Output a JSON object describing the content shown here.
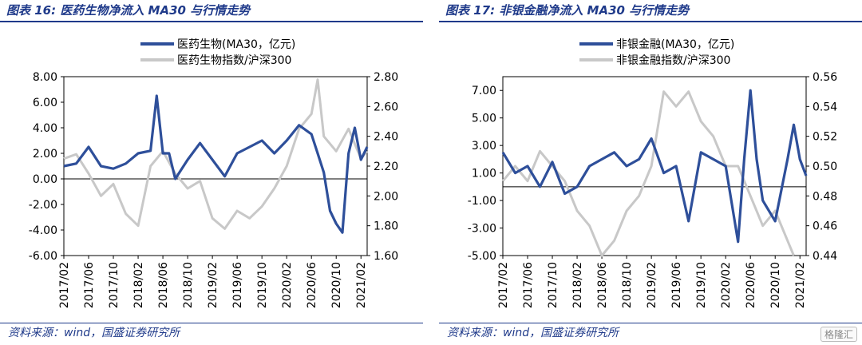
{
  "charts": [
    {
      "title": "图表 16:  医药生物净流入 MA30 与行情走势",
      "source": "资料来源：wind，国盛证券研究所"
    },
    {
      "title": "图表 17:  非银金融净流入 MA30 与行情走势",
      "source": "资料来源：wind，国盛证券研究所"
    }
  ],
  "watermark": "格隆汇",
  "chart_data": [
    {
      "type": "line",
      "title": "",
      "x_ticks": [
        "2017/02",
        "2017/06",
        "2017/10",
        "2018/02",
        "2018/06",
        "2018/10",
        "2019/02",
        "2019/06",
        "2019/10",
        "2020/02",
        "2020/06",
        "2020/10",
        "2021/02"
      ],
      "y_left": {
        "min": -6,
        "max": 8,
        "ticks": [
          "-6.00",
          "-4.00",
          "-2.00",
          "0.00",
          "2.00",
          "4.00",
          "6.00",
          "8.00"
        ]
      },
      "y_right": {
        "min": 1.6,
        "max": 2.8,
        "ticks": [
          "1.60",
          "1.80",
          "2.00",
          "2.20",
          "2.40",
          "2.60",
          "2.80"
        ]
      },
      "legend_position": "top-center",
      "series": [
        {
          "name": "医药生物(MA30，亿元)",
          "axis": "left",
          "color": "#2e4f9a",
          "x": [
            "2017/02",
            "2017/04",
            "2017/06",
            "2017/08",
            "2017/10",
            "2017/12",
            "2018/02",
            "2018/04",
            "2018/05",
            "2018/06",
            "2018/07",
            "2018/08",
            "2018/10",
            "2018/12",
            "2019/02",
            "2019/04",
            "2019/06",
            "2019/08",
            "2019/10",
            "2019/12",
            "2020/02",
            "2020/04",
            "2020/06",
            "2020/07",
            "2020/08",
            "2020/09",
            "2020/10",
            "2020/11",
            "2020/12",
            "2021/01",
            "2021/02",
            "2021/03"
          ],
          "values": [
            1.0,
            1.2,
            2.5,
            1.0,
            0.8,
            1.2,
            2.0,
            2.2,
            6.5,
            2.0,
            2.0,
            0.0,
            1.5,
            2.8,
            1.5,
            0.2,
            2.0,
            2.5,
            3.0,
            2.0,
            3.0,
            4.2,
            3.5,
            2.0,
            0.5,
            -2.5,
            -3.5,
            -4.2,
            2.0,
            4.0,
            1.5,
            2.5
          ]
        },
        {
          "name": "医药生物指数/沪深300",
          "axis": "right",
          "color": "#c8c8c8",
          "x": [
            "2017/02",
            "2017/04",
            "2017/06",
            "2017/08",
            "2017/10",
            "2017/12",
            "2018/02",
            "2018/04",
            "2018/06",
            "2018/08",
            "2018/10",
            "2018/12",
            "2019/02",
            "2019/04",
            "2019/06",
            "2019/08",
            "2019/10",
            "2019/12",
            "2020/02",
            "2020/04",
            "2020/06",
            "2020/07",
            "2020/08",
            "2020/10",
            "2020/12",
            "2021/02",
            "2021/03"
          ],
          "values": [
            2.25,
            2.28,
            2.15,
            2.0,
            2.08,
            1.88,
            1.8,
            2.2,
            2.3,
            2.15,
            2.05,
            2.1,
            1.85,
            1.78,
            1.9,
            1.85,
            1.93,
            2.05,
            2.2,
            2.45,
            2.55,
            2.78,
            2.4,
            2.3,
            2.45,
            2.25,
            2.3
          ]
        }
      ]
    },
    {
      "type": "line",
      "title": "",
      "x_ticks": [
        "2017/02",
        "2017/06",
        "2017/10",
        "2018/02",
        "2018/06",
        "2018/10",
        "2019/02",
        "2019/06",
        "2019/10",
        "2020/02",
        "2020/06",
        "2020/10",
        "2021/02"
      ],
      "y_left": {
        "min": -5,
        "max": 8,
        "ticks": [
          "-5.00",
          "-3.00",
          "-1.00",
          "1.00",
          "3.00",
          "5.00",
          "7.00"
        ]
      },
      "y_right": {
        "min": 0.44,
        "max": 0.56,
        "ticks": [
          "0.44",
          "0.46",
          "0.48",
          "0.50",
          "0.52",
          "0.54",
          "0.56"
        ]
      },
      "legend_position": "top-center",
      "series": [
        {
          "name": "非银金融(MA30，亿元)",
          "axis": "left",
          "color": "#2e4f9a",
          "x": [
            "2017/02",
            "2017/04",
            "2017/06",
            "2017/08",
            "2017/10",
            "2017/12",
            "2018/02",
            "2018/04",
            "2018/06",
            "2018/08",
            "2018/10",
            "2018/12",
            "2019/02",
            "2019/04",
            "2019/06",
            "2019/08",
            "2019/10",
            "2019/12",
            "2020/02",
            "2020/04",
            "2020/05",
            "2020/06",
            "2020/07",
            "2020/08",
            "2020/10",
            "2020/12",
            "2021/01",
            "2021/02",
            "2021/03"
          ],
          "values": [
            2.5,
            1.0,
            1.5,
            0.0,
            1.8,
            -0.5,
            0.0,
            1.5,
            2.0,
            2.5,
            1.5,
            2.0,
            3.5,
            1.0,
            1.5,
            -2.5,
            2.5,
            2.0,
            1.5,
            -4.0,
            2.0,
            7.0,
            2.0,
            -1.0,
            -2.5,
            2.0,
            4.5,
            2.0,
            0.8
          ]
        },
        {
          "name": "非银金融指数/沪深300",
          "axis": "right",
          "color": "#c8c8c8",
          "x": [
            "2017/02",
            "2017/04",
            "2017/06",
            "2017/08",
            "2017/10",
            "2017/12",
            "2018/02",
            "2018/04",
            "2018/06",
            "2018/08",
            "2018/10",
            "2018/12",
            "2019/02",
            "2019/04",
            "2019/06",
            "2019/08",
            "2019/10",
            "2019/12",
            "2020/02",
            "2020/04",
            "2020/06",
            "2020/08",
            "2020/10",
            "2020/12",
            "2021/01"
          ],
          "values": [
            0.49,
            0.5,
            0.49,
            0.51,
            0.5,
            0.49,
            0.47,
            0.46,
            0.44,
            0.45,
            0.47,
            0.48,
            0.5,
            0.55,
            0.54,
            0.55,
            0.53,
            0.52,
            0.5,
            0.5,
            0.48,
            0.46,
            0.47,
            0.45,
            0.44
          ]
        }
      ]
    }
  ]
}
